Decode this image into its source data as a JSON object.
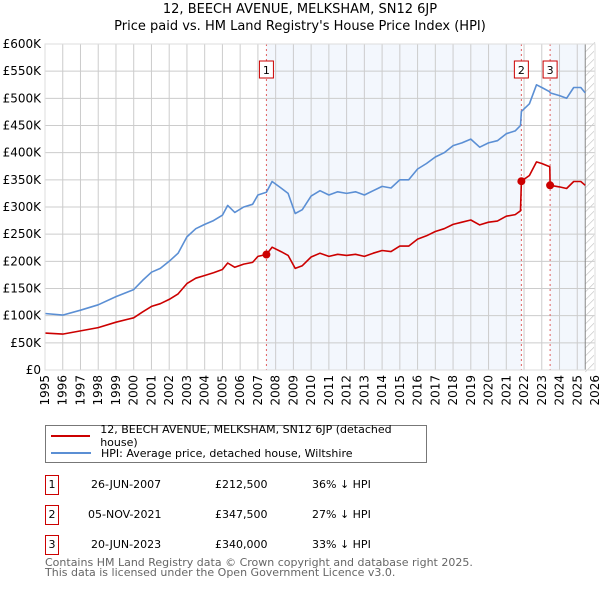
{
  "chart_data": {
    "type": "line",
    "title": "12, BEECH AVENUE, MELKSHAM, SN12 6JP",
    "subtitle": "Price paid vs. HM Land Registry's House Price Index (HPI)",
    "xlim": [
      1995,
      2026
    ],
    "ylim": [
      0,
      600000
    ],
    "grid": true,
    "y_ticks": [
      0,
      50000,
      100000,
      150000,
      200000,
      250000,
      300000,
      350000,
      400000,
      450000,
      500000,
      550000,
      600000
    ],
    "y_tick_labels": [
      "£0",
      "£50K",
      "£100K",
      "£150K",
      "£200K",
      "£250K",
      "£300K",
      "£350K",
      "£400K",
      "£450K",
      "£500K",
      "£550K",
      "£600K"
    ],
    "x_tick_labels": [
      "1995",
      "1996",
      "1997",
      "1998",
      "1999",
      "2000",
      "2001",
      "2002",
      "2003",
      "2004",
      "2005",
      "2006",
      "2007",
      "2008",
      "2009",
      "2010",
      "2011",
      "2012",
      "2013",
      "2014",
      "2015",
      "2016",
      "2017",
      "2018",
      "2019",
      "2020",
      "2021",
      "2022",
      "2023",
      "2024",
      "2025",
      "2026"
    ],
    "x": [
      1995,
      1996,
      1997,
      1998,
      1999,
      2000,
      2000.5,
      2001,
      2001.5,
      2002,
      2002.5,
      2003,
      2003.5,
      2004,
      2004.5,
      2005,
      2005.3,
      2005.7,
      2006.2,
      2006.7,
      2007,
      2007.48,
      2007.8,
      2008.3,
      2008.7,
      2009.1,
      2009.5,
      2010,
      2010.5,
      2011,
      2011.5,
      2012,
      2012.5,
      2013,
      2013.5,
      2014,
      2014.5,
      2015,
      2015.5,
      2016,
      2016.5,
      2017,
      2017.5,
      2018,
      2018.5,
      2019,
      2019.5,
      2020,
      2020.5,
      2021,
      2021.5,
      2021.8,
      2021.85,
      2022.3,
      2022.7,
      2023,
      2023.45,
      2023.47,
      2024,
      2024.4,
      2024.8,
      2025.2,
      2025.45
    ],
    "series": [
      {
        "name": "12, BEECH AVENUE, MELKSHAM, SN12 6JP (detached house)",
        "color": "#cc0000",
        "values": [
          68000,
          66000,
          72000,
          78000,
          88000,
          96000,
          107000,
          117000,
          122000,
          130000,
          140000,
          159000,
          169000,
          174000,
          179000,
          185000,
          197000,
          189000,
          195000,
          198000,
          209000,
          212500,
          226000,
          218000,
          211000,
          187000,
          192000,
          208000,
          215000,
          209000,
          213000,
          211000,
          213000,
          209000,
          215000,
          220000,
          218000,
          228000,
          228000,
          241000,
          247000,
          255000,
          260000,
          268000,
          272000,
          276000,
          267000,
          272000,
          274000,
          283000,
          286000,
          293000,
          347500,
          358000,
          383000,
          380000,
          374000,
          340000,
          337000,
          334000,
          347000,
          347000,
          340000
        ]
      },
      {
        "name": "HPI: Average price, detached house, Wiltshire",
        "color": "#5b8fd4",
        "values": [
          104000,
          101000,
          110000,
          120000,
          135000,
          148000,
          165000,
          180000,
          187000,
          200000,
          215000,
          245000,
          260000,
          268000,
          275000,
          285000,
          303000,
          290000,
          300000,
          305000,
          322000,
          327000,
          347000,
          335000,
          325000,
          288000,
          295000,
          320000,
          330000,
          322000,
          328000,
          325000,
          328000,
          322000,
          330000,
          338000,
          335000,
          350000,
          350000,
          370000,
          380000,
          392000,
          400000,
          413000,
          418000,
          425000,
          410000,
          418000,
          422000,
          435000,
          440000,
          450000,
          476000,
          490000,
          525000,
          520000,
          512000,
          510000,
          505000,
          500000,
          520000,
          520000,
          510000
        ]
      }
    ],
    "sales": [
      {
        "label": "1",
        "x": 2007.48,
        "value": 212500
      },
      {
        "label": "2",
        "x": 2021.85,
        "value": 347500
      },
      {
        "label": "3",
        "x": 2023.47,
        "value": 340000
      }
    ],
    "data_end": 2025.45
  },
  "legend": {
    "property": "12, BEECH AVENUE, MELKSHAM, SN12 6JP (detached house)",
    "hpi": "HPI: Average price, detached house, Wiltshire"
  },
  "transactions": [
    {
      "num": "1",
      "date": "26-JUN-2007",
      "price": "£212,500",
      "hpi": "36% ↓ HPI"
    },
    {
      "num": "2",
      "date": "05-NOV-2021",
      "price": "£347,500",
      "hpi": "27% ↓ HPI"
    },
    {
      "num": "3",
      "date": "20-JUN-2023",
      "price": "£340,000",
      "hpi": "33% ↓ HPI"
    }
  ],
  "footer": {
    "line1": "Contains HM Land Registry data © Crown copyright and database right 2025.",
    "line2": "This data is licensed under the Open Government Licence v3.0."
  }
}
